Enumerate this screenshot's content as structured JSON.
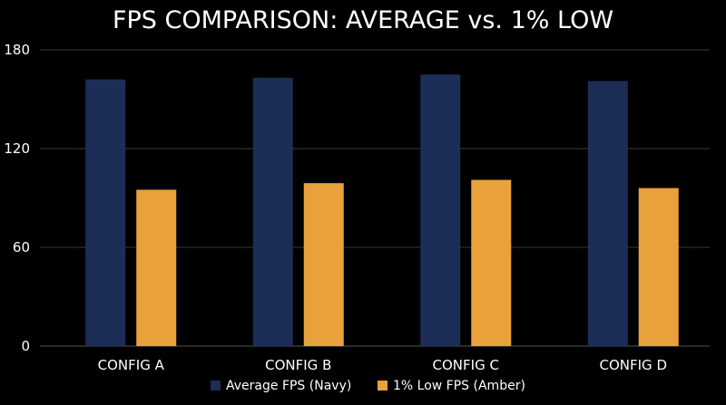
{
  "chart_data": {
    "type": "bar",
    "title": "FPS COMPARISON: AVERAGE vs. 1% LOW",
    "xlabel": "",
    "ylabel": "",
    "categories": [
      "CONFIG A",
      "CONFIG B",
      "CONFIG C",
      "CONFIG D"
    ],
    "series": [
      {
        "name": "Average FPS (Navy)",
        "color": "#1c2e57",
        "values": [
          162,
          163,
          165,
          161
        ]
      },
      {
        "name": "1% Low FPS (Amber)",
        "color": "#e9a23b",
        "values": [
          95,
          99,
          101,
          96
        ]
      }
    ],
    "ylim": [
      0,
      180
    ],
    "yticks": [
      "0",
      "60",
      "120",
      "180"
    ],
    "ytick_values": [
      0,
      60,
      120,
      180
    ],
    "grid": true,
    "legend_position": "bottom-center",
    "colors": {
      "background": "#000000",
      "text": "#ffffff",
      "grid": "#3a3a3a"
    }
  }
}
